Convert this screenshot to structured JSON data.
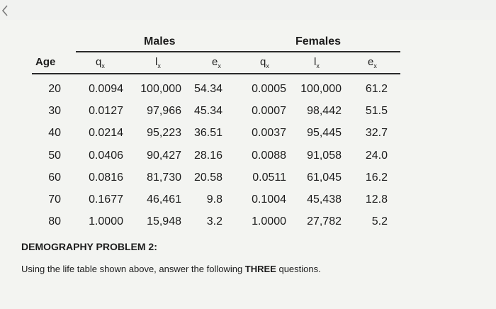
{
  "groups": {
    "males": "Males",
    "females": "Females"
  },
  "columns": {
    "age": "Age",
    "q": "q",
    "l": "l",
    "e": "e",
    "sub": "x"
  },
  "rows": [
    [
      "20",
      "0.0094",
      "100,000",
      "54.34",
      "0.0005",
      "100,000",
      "61.2"
    ],
    [
      "30",
      "0.0127",
      "97,966",
      "45.34",
      "0.0007",
      "98,442",
      "51.5"
    ],
    [
      "40",
      "0.0214",
      "95,223",
      "36.51",
      "0.0037",
      "95,445",
      "32.7"
    ],
    [
      "50",
      "0.0406",
      "90,427",
      "28.16",
      "0.0088",
      "91,058",
      "24.0"
    ],
    [
      "60",
      "0.0816",
      "81,730",
      "20.58",
      "0.0511",
      "61,045",
      "16.2"
    ],
    [
      "70",
      "0.1677",
      "46,461",
      "9.8",
      "0.1004",
      "45,438",
      "12.8"
    ],
    [
      "80",
      "1.0000",
      "15,948",
      "3.2",
      "1.0000",
      "27,782",
      "5.2"
    ]
  ],
  "problem": {
    "title": "DEMOGRAPHY PROBLEM 2:",
    "text_before": "Using the life table shown above, answer the following ",
    "text_bold": "THREE",
    "text_after": " questions."
  },
  "icons": {
    "back": "chevron-left-icon"
  }
}
